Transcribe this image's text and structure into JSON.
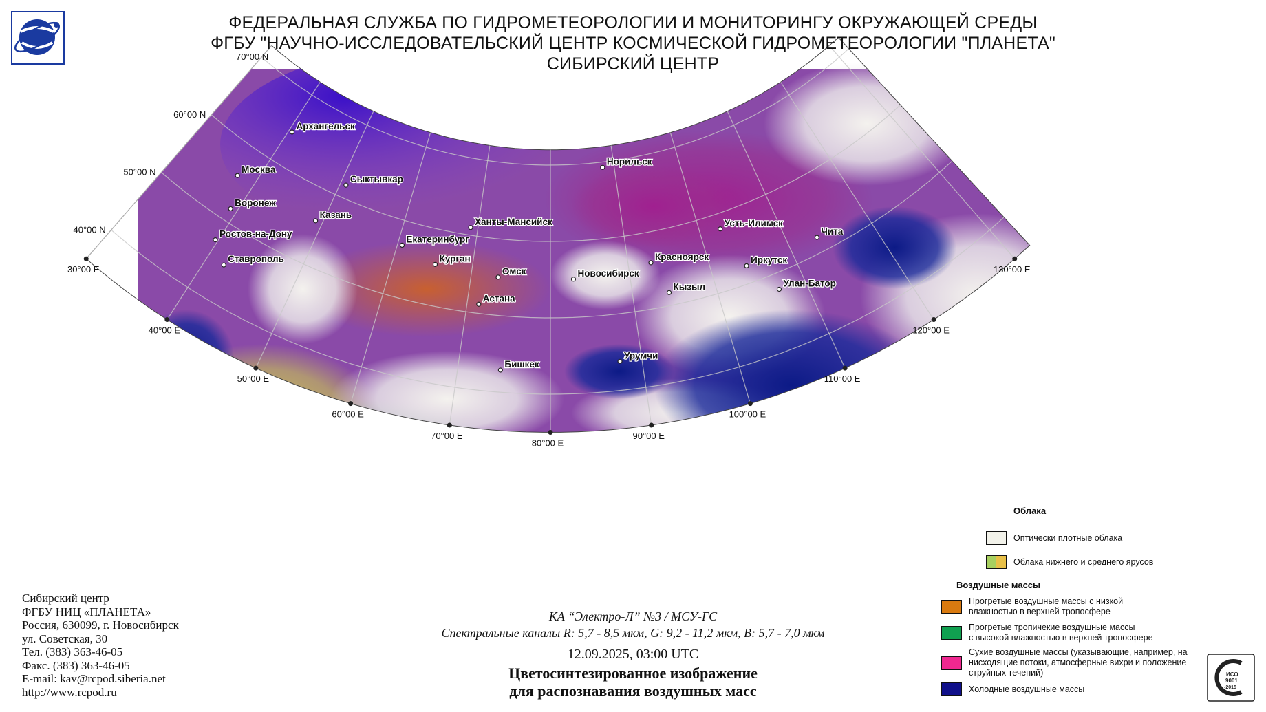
{
  "header": {
    "line1": "ФЕДЕРАЛЬНАЯ СЛУЖБА ПО ГИДРОМЕТЕОРОЛОГИИ И МОНИТОРИНГУ ОКРУЖАЮЩЕЙ СРЕДЫ",
    "line2": "ФГБУ \"НАУЧНО-ИССЛЕДОВАТЕЛЬСКИЙ ЦЕНТР КОСМИЧЕСКОЙ ГИДРОМЕТЕОРОЛОГИИ \"ПЛАНЕТА\"",
    "line3": "СИБИРСКИЙ ЦЕНТР"
  },
  "lat_labels": [
    "70°00 N",
    "60°00 N",
    "50°00 N",
    "40°00 N"
  ],
  "lon_labels": [
    "30°00 E",
    "40°00 E",
    "50°00 E",
    "60°00 E",
    "70°00 E",
    "80°00 E",
    "90°00 E",
    "100°00 E",
    "110°00 E",
    "120°00 E",
    "130°00 E"
  ],
  "cities": [
    {
      "name": "Архангельск",
      "lon": 40.5,
      "lat": 64.5
    },
    {
      "name": "Норильск",
      "lon": 88.2,
      "lat": 69.3
    },
    {
      "name": "Сыктывкар",
      "lon": 50.8,
      "lat": 61.7
    },
    {
      "name": "Москва",
      "lon": 37.6,
      "lat": 55.8
    },
    {
      "name": "Ханты-Мансийск",
      "lon": 69.0,
      "lat": 61.0
    },
    {
      "name": "Казань",
      "lon": 49.1,
      "lat": 55.8
    },
    {
      "name": "Усть-Илимск",
      "lon": 102.7,
      "lat": 58.0
    },
    {
      "name": "Воронеж",
      "lon": 39.2,
      "lat": 51.7
    },
    {
      "name": "Екатеринбург",
      "lon": 60.6,
      "lat": 56.8
    },
    {
      "name": "Чита",
      "lon": 113.5,
      "lat": 52.0
    },
    {
      "name": "Красноярск",
      "lon": 92.9,
      "lat": 56.0
    },
    {
      "name": "Курган",
      "lon": 65.3,
      "lat": 55.4
    },
    {
      "name": "Омск",
      "lon": 73.4,
      "lat": 55.0
    },
    {
      "name": "Новосибирск",
      "lon": 82.9,
      "lat": 55.0
    },
    {
      "name": "Иркутск",
      "lon": 104.3,
      "lat": 52.3
    },
    {
      "name": "Ростов-на-Дону",
      "lon": 39.7,
      "lat": 47.2
    },
    {
      "name": "Кызыл",
      "lon": 94.4,
      "lat": 51.7
    },
    {
      "name": "Улан-Батор",
      "lon": 106.9,
      "lat": 47.9
    },
    {
      "name": "Астана",
      "lon": 71.4,
      "lat": 51.2
    },
    {
      "name": "Ставрополь",
      "lon": 42.0,
      "lat": 45.0
    },
    {
      "name": "Урумчи",
      "lon": 87.6,
      "lat": 43.8
    },
    {
      "name": "Бишкек",
      "lon": 74.6,
      "lat": 42.9
    }
  ],
  "address": {
    "l1": "Сибирский центр",
    "l2": "ФГБУ НИЦ «ПЛАНЕТА»",
    "l3": "Россия, 630099, г. Новосибирск",
    "l4": "ул. Советская, 30",
    "l5": "Тел. (383) 363-46-05",
    "l6": "Факс. (383) 363-46-05",
    "l7": "E-mail: kav@rcpod.siberia.net",
    "l8": "http://www.rcpod.ru"
  },
  "caption": {
    "satellite": "КА “Электро-Л” №3 / МСУ-ГС",
    "channels": "Спектральные каналы R: 5,7 - 8,5 мкм, G: 9,2 - 11,2 мкм, B: 5,7 - 7,0 мкм",
    "datetime": "12.09.2025, 03:00 UTC",
    "title1": "Цветосинтезированное изображение",
    "title2": "для распознавания воздушных масс"
  },
  "legend": {
    "clouds_heading": "Облака",
    "dense": "Оптически плотные облака",
    "low_mid": "Облака нижнего и среднего ярусов",
    "airmasses_heading": "Воздушные массы",
    "warm_low_1": "Прогретые воздушные массы с низкой",
    "warm_low_2": "влажностью в верхней тропосфере",
    "tropical_1": "Прогретые тропичекие воздушные массы",
    "tropical_2": "с высокой влажностью в верхней тропосфере",
    "dry_1": "Сухие воздушные массы (указывающие, например, на",
    "dry_2": "нисходящие потоки, атмосферные вихри и положение",
    "dry_3": "струйных течений)",
    "cold": "Холодные воздушные массы"
  },
  "colors": {
    "dense": "#f2f2ea",
    "low_mid_a": "#a8d060",
    "low_mid_b": "#e8c048",
    "warm_low": "#d97a10",
    "tropical": "#10a050",
    "dry": "#f02890",
    "cold": "#10108a"
  }
}
